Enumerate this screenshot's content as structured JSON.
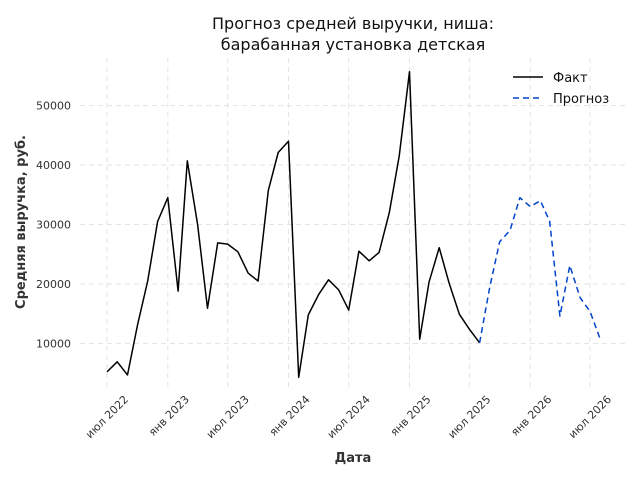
{
  "chart_data": {
    "type": "line",
    "title_line1": "Прогноз средней выручки, ниша:",
    "title_line2": "барабанная установка детская",
    "xlabel": "Дата",
    "ylabel": "Средняя выручка, руб.",
    "ylim": [
      2500,
      58000
    ],
    "y_ticks": [
      10000,
      20000,
      30000,
      40000,
      50000
    ],
    "x_ticks": [
      {
        "date": "2022-07-01",
        "label": "июл 2022"
      },
      {
        "date": "2023-01-01",
        "label": "янв 2023"
      },
      {
        "date": "2023-07-01",
        "label": "июл 2023"
      },
      {
        "date": "2024-01-01",
        "label": "янв 2024"
      },
      {
        "date": "2024-07-01",
        "label": "июл 2024"
      },
      {
        "date": "2025-01-01",
        "label": "янв 2025"
      },
      {
        "date": "2025-07-01",
        "label": "июл 2025"
      },
      {
        "date": "2026-01-01",
        "label": "янв 2026"
      },
      {
        "date": "2026-07-01",
        "label": "июл 2026"
      }
    ],
    "grid": true,
    "legend_position": "top-right",
    "series": [
      {
        "name": "Факт",
        "style": "solid",
        "color": "#000000",
        "points": [
          [
            "2022-07-01",
            5200
          ],
          [
            "2022-08-01",
            6900
          ],
          [
            "2022-09-01",
            4700
          ],
          [
            "2022-10-01",
            13000
          ],
          [
            "2022-11-01",
            20500
          ],
          [
            "2022-12-01",
            30500
          ],
          [
            "2023-01-01",
            34500
          ],
          [
            "2023-02-01",
            18800
          ],
          [
            "2023-03-01",
            40700
          ],
          [
            "2023-04-01",
            30000
          ],
          [
            "2023-05-01",
            15900
          ],
          [
            "2023-06-01",
            26900
          ],
          [
            "2023-07-01",
            26700
          ],
          [
            "2023-08-01",
            25400
          ],
          [
            "2023-09-01",
            21800
          ],
          [
            "2023-10-01",
            20500
          ],
          [
            "2023-11-01",
            35700
          ],
          [
            "2023-12-01",
            42100
          ],
          [
            "2024-01-01",
            44000
          ],
          [
            "2024-02-01",
            4300
          ],
          [
            "2024-03-01",
            14800
          ],
          [
            "2024-04-01",
            18200
          ],
          [
            "2024-05-01",
            20700
          ],
          [
            "2024-06-01",
            19000
          ],
          [
            "2024-07-01",
            15600
          ],
          [
            "2024-08-01",
            25500
          ],
          [
            "2024-09-01",
            23900
          ],
          [
            "2024-10-01",
            25300
          ],
          [
            "2024-11-01",
            32000
          ],
          [
            "2024-12-01",
            41500
          ],
          [
            "2025-01-01",
            55700
          ],
          [
            "2025-02-01",
            10700
          ],
          [
            "2025-03-01",
            20300
          ],
          [
            "2025-04-01",
            26100
          ],
          [
            "2025-05-01",
            20100
          ],
          [
            "2025-06-01",
            14900
          ],
          [
            "2025-07-01",
            12400
          ],
          [
            "2025-08-01",
            10100
          ]
        ]
      },
      {
        "name": "Прогноз",
        "style": "dashed",
        "color": "#0044cc",
        "points": [
          [
            "2025-08-01",
            10100
          ],
          [
            "2025-09-01",
            19500
          ],
          [
            "2025-10-01",
            27100
          ],
          [
            "2025-11-01",
            29000
          ],
          [
            "2025-12-01",
            34500
          ],
          [
            "2026-01-01",
            33000
          ],
          [
            "2026-02-01",
            34000
          ],
          [
            "2026-03-01",
            30500
          ],
          [
            "2026-04-01",
            14600
          ],
          [
            "2026-05-01",
            23100
          ],
          [
            "2026-06-01",
            17700
          ],
          [
            "2026-07-01",
            15400
          ],
          [
            "2026-08-01",
            10700
          ]
        ]
      }
    ]
  }
}
